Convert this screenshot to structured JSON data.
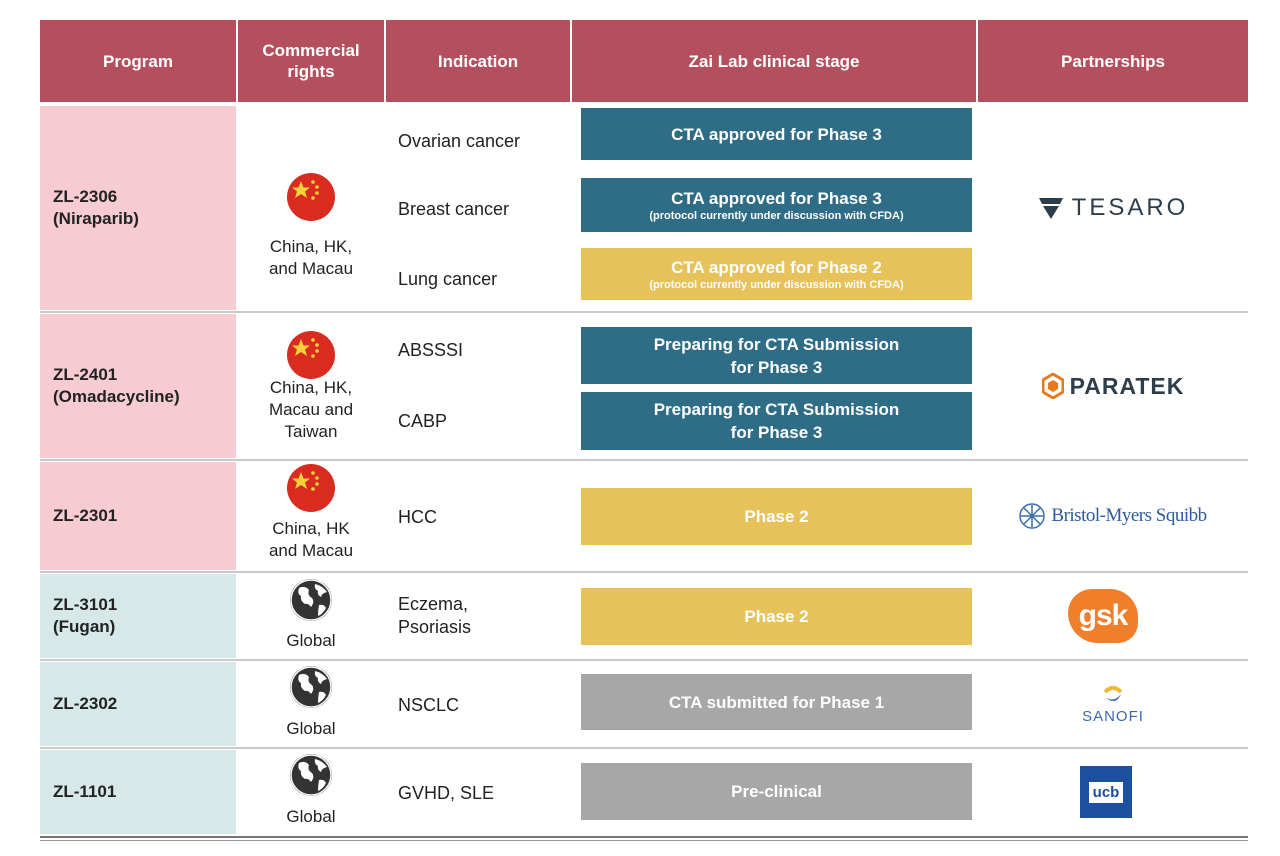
{
  "table": {
    "headers": [
      [
        "Program"
      ],
      [
        "Commercial",
        "rights"
      ],
      [
        "Indication"
      ],
      [
        "Zai Lab clinical stage"
      ],
      [
        "Partnerships"
      ]
    ],
    "rows": [
      {
        "program": [
          "ZL-2306",
          "(Niraparib)"
        ],
        "rights": [
          "China, HK,",
          "and Macau"
        ],
        "indications": [
          [
            "Ovarian cancer"
          ],
          [
            "Breast cancer"
          ],
          [
            "Lung cancer"
          ]
        ],
        "stages": [
          {
            "text": [
              "CTA approved for Phase 3"
            ],
            "color": "#2f6c86"
          },
          {
            "text": [
              "CTA approved for Phase 3"
            ],
            "note": "(protocol currently under discussion with CFDA)",
            "color": "#2f6c86"
          },
          {
            "text": [
              "CTA approved for Phase 2"
            ],
            "note": "(protocol currently under discussion with CFDA)",
            "color": "#e7c15a"
          }
        ],
        "partner": "TESARO"
      },
      {
        "program": [
          "ZL-2401",
          "(Omadacycline)"
        ],
        "rights": [
          "China, HK,",
          "Macau and",
          "Taiwan"
        ],
        "indications": [
          [
            "ABSSSI"
          ],
          [
            "CABP"
          ]
        ],
        "stages": [
          {
            "text": [
              "Preparing for CTA Submission",
              "for Phase 3"
            ],
            "color": "#2f6c86"
          },
          {
            "text": [
              "Preparing for  CTA Submission",
              "for Phase 3"
            ],
            "color": "#2f6c86"
          }
        ],
        "partner": "PARATEK"
      },
      {
        "program": [
          "ZL-2301"
        ],
        "rights": [
          "China, HK",
          "and Macau"
        ],
        "indications": [
          [
            "HCC"
          ]
        ],
        "stages": [
          {
            "text": [
              "Phase 2"
            ],
            "color": "#e7c15a"
          }
        ],
        "partner": "Bristol-Myers Squibb"
      },
      {
        "program": [
          "ZL-3101",
          "(Fugan)"
        ],
        "rights": [
          "Global"
        ],
        "indications": [
          [
            "Eczema,",
            "Psoriasis"
          ]
        ],
        "stages": [
          {
            "text": [
              "Phase 2"
            ],
            "color": "#e7c15a"
          }
        ],
        "partner": "gsk"
      },
      {
        "program": [
          "ZL-2302"
        ],
        "rights": [
          "Global"
        ],
        "indications": [
          [
            "NSCLC"
          ]
        ],
        "stages": [
          {
            "text": [
              "CTA submitted for Phase 1"
            ],
            "color": "#a7a7a7"
          }
        ],
        "partner": "SANOFI"
      },
      {
        "program": [
          "ZL-1101"
        ],
        "rights": [
          "Global"
        ],
        "indications": [
          [
            "GVHD, SLE"
          ]
        ],
        "stages": [
          {
            "text": [
              "Pre-clinical"
            ],
            "color": "#a7a7a7"
          }
        ],
        "partner": "ucb"
      }
    ]
  }
}
